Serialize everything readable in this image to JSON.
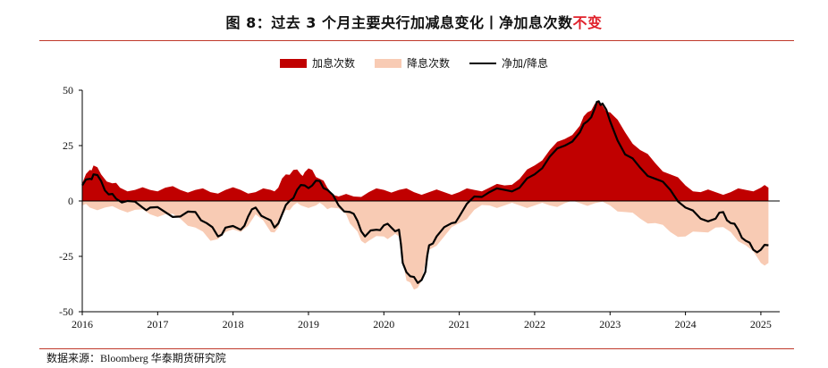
{
  "title": {
    "main": "图 8：过去 3 个月主要央行加减息变化丨净加息次数",
    "highlight": "不变"
  },
  "source": "数据来源：Bloomberg 华泰期货研究院",
  "colors": {
    "hike": "#c00000",
    "cut": "#f8cbb4",
    "net": "#000000",
    "rule": "#c0392b"
  },
  "chart_data": {
    "type": "area",
    "legend_position": "top-center",
    "ylim": [
      -50,
      50
    ],
    "yticks": [
      50,
      25,
      0,
      -25,
      -50
    ],
    "xlim": [
      2016.0,
      2025.25
    ],
    "xticks": [
      "2016",
      "2017",
      "2018",
      "2019",
      "2020",
      "2021",
      "2022",
      "2023",
      "2024",
      "2025"
    ],
    "series": [
      {
        "name": "加息次数",
        "style": "area",
        "color": "#c00000",
        "x": [
          2016.0,
          2016.1,
          2016.15,
          2016.25,
          2016.4,
          2016.5,
          2016.7,
          2016.9,
          2017.1,
          2017.3,
          2017.5,
          2017.7,
          2017.9,
          2018.1,
          2018.3,
          2018.5,
          2018.6,
          2018.7,
          2018.8,
          2018.9,
          2018.95,
          2019.05,
          2019.15,
          2019.25,
          2019.4,
          2019.6,
          2019.8,
          2020.0,
          2020.2,
          2020.4,
          2020.6,
          2020.8,
          2021.0,
          2021.2,
          2021.4,
          2021.6,
          2021.8,
          2022.0,
          2022.2,
          2022.4,
          2022.6,
          2022.7,
          2022.8,
          2022.9,
          2023.0,
          2023.2,
          2023.4,
          2023.6,
          2023.8,
          2024.0,
          2024.2,
          2024.4,
          2024.6,
          2024.8,
          2025.0,
          2025.1
        ],
        "values": [
          8,
          14,
          16,
          12,
          8,
          6,
          5,
          5,
          6,
          5,
          5,
          4,
          5,
          5,
          4,
          5,
          6,
          12,
          14,
          12,
          13,
          14,
          10,
          6,
          2,
          2,
          4,
          5,
          5,
          4,
          4,
          4,
          4,
          5,
          6,
          7,
          10,
          16,
          23,
          28,
          34,
          40,
          44,
          43,
          40,
          31,
          23,
          17,
          12,
          7,
          4,
          4,
          4,
          5,
          6,
          6
        ]
      },
      {
        "name": "降息次数",
        "style": "area",
        "color": "#f8cbb4",
        "x": [
          2016.0,
          2016.1,
          2016.3,
          2016.5,
          2016.7,
          2016.9,
          2017.1,
          2017.3,
          2017.5,
          2017.7,
          2017.9,
          2018.1,
          2018.3,
          2018.5,
          2018.6,
          2018.7,
          2018.8,
          2018.9,
          2019.1,
          2019.2,
          2019.3,
          2019.5,
          2019.6,
          2019.7,
          2019.8,
          2020.0,
          2020.1,
          2020.2,
          2020.3,
          2020.4,
          2020.5,
          2020.6,
          2020.8,
          2021.0,
          2021.2,
          2021.4,
          2021.6,
          2021.8,
          2022.0,
          2022.2,
          2022.4,
          2022.6,
          2022.8,
          2023.0,
          2023.2,
          2023.4,
          2023.6,
          2023.8,
          2024.0,
          2024.2,
          2024.4,
          2024.6,
          2024.8,
          2025.0,
          2025.1
        ],
        "values": [
          -2,
          -3,
          -3,
          -4,
          -4,
          -6,
          -6,
          -8,
          -12,
          -18,
          -14,
          -14,
          -6,
          -14,
          -12,
          -4,
          -2,
          -2,
          -2,
          -2,
          -3,
          -6,
          -12,
          -18,
          -18,
          -16,
          -16,
          -16,
          -36,
          -40,
          -36,
          -22,
          -16,
          -10,
          -4,
          -2,
          -2,
          -2,
          -2,
          -2,
          -1,
          -1,
          -1,
          -2,
          -5,
          -8,
          -10,
          -14,
          -16,
          -14,
          -12,
          -14,
          -20,
          -28,
          -28
        ]
      },
      {
        "name": "净加/降息",
        "style": "line",
        "color": "#000000",
        "x": [
          2016.0,
          2016.1,
          2016.15,
          2016.25,
          2016.35,
          2016.45,
          2016.6,
          2016.8,
          2016.9,
          2017.1,
          2017.3,
          2017.5,
          2017.65,
          2017.8,
          2017.9,
          2018.1,
          2018.2,
          2018.3,
          2018.45,
          2018.55,
          2018.65,
          2018.75,
          2018.85,
          2018.95,
          2019.05,
          2019.15,
          2019.25,
          2019.4,
          2019.55,
          2019.65,
          2019.75,
          2019.9,
          2020.0,
          2020.1,
          2020.2,
          2020.25,
          2020.35,
          2020.45,
          2020.55,
          2020.6,
          2020.7,
          2020.9,
          2021.0,
          2021.2,
          2021.4,
          2021.6,
          2021.8,
          2022.0,
          2022.2,
          2022.4,
          2022.6,
          2022.7,
          2022.8,
          2022.85,
          2022.9,
          2023.0,
          2023.2,
          2023.4,
          2023.6,
          2023.8,
          2024.0,
          2024.2,
          2024.4,
          2024.5,
          2024.6,
          2024.7,
          2024.8,
          2024.9,
          2025.0,
          2025.1
        ],
        "values": [
          7,
          10,
          12,
          9,
          3,
          1,
          0,
          -3,
          -3,
          -5,
          -7,
          -5,
          -10,
          -16,
          -12,
          -13,
          -7,
          -3,
          -8,
          -12,
          -6,
          0,
          5,
          7,
          7,
          9,
          5,
          -2,
          -5,
          -9,
          -16,
          -13,
          -11,
          -12,
          -13,
          -28,
          -34,
          -37,
          -32,
          -20,
          -16,
          -10,
          -7,
          2,
          4,
          5,
          6,
          12,
          20,
          25,
          31,
          36,
          42,
          45,
          44,
          36,
          21,
          15,
          10,
          5,
          -3,
          -8,
          -8,
          -5,
          -10,
          -13,
          -18,
          -22,
          -22,
          -20
        ]
      }
    ]
  }
}
